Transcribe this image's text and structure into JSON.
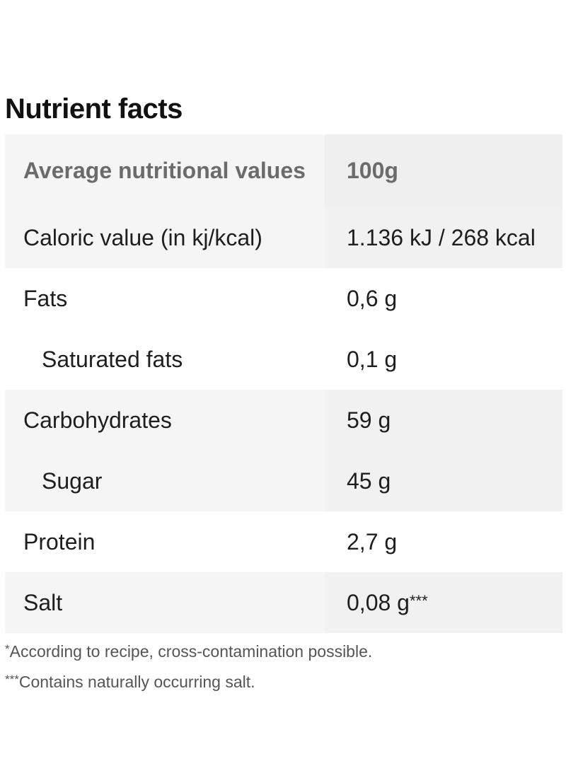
{
  "title": "Nutrient facts",
  "header": {
    "label": "Average nutritional values",
    "value": "100g"
  },
  "rows": [
    {
      "label": "Caloric value (in kj/kcal)",
      "value": "1.136 kJ / 268 kcal",
      "mark": ""
    },
    {
      "label": "Fats",
      "value": "0,6 g",
      "mark": ""
    },
    {
      "label": "Saturated fats",
      "value": "0,1 g",
      "mark": ""
    },
    {
      "label": "Carbohydrates",
      "value": "59 g",
      "mark": ""
    },
    {
      "label": "Sugar",
      "value": "45 g",
      "mark": ""
    },
    {
      "label": "Protein",
      "value": "2,7 g",
      "mark": ""
    },
    {
      "label": "Salt",
      "value": "0,08 g",
      "mark": "***"
    }
  ],
  "footnotes": [
    {
      "mark": "*",
      "text": "According to recipe, cross-contamination possible."
    },
    {
      "mark": "***",
      "text": "Contains naturally occurring salt."
    }
  ]
}
